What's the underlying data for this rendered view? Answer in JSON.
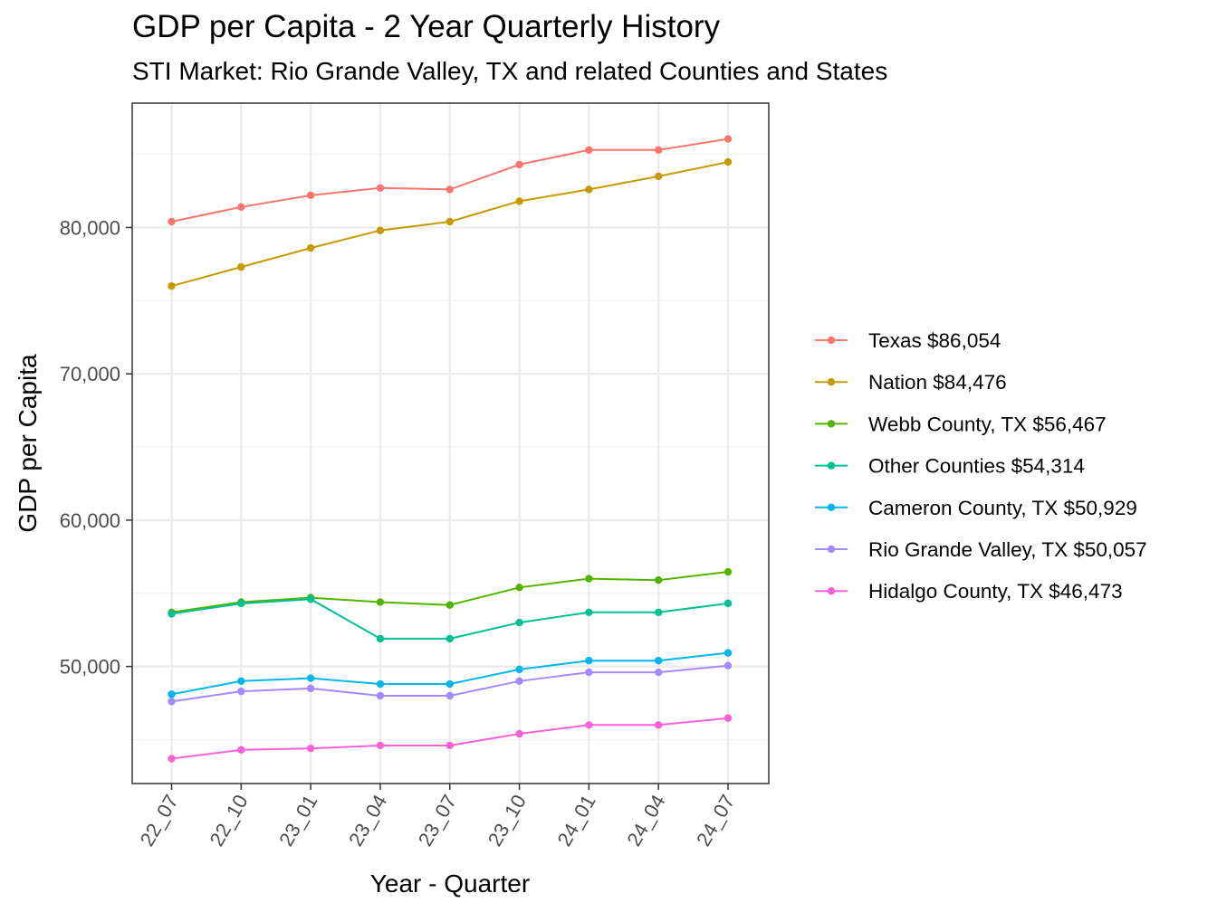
{
  "chart_data": {
    "type": "line",
    "title": "GDP per Capita - 2 Year Quarterly History",
    "subtitle": "STI Market: Rio Grande Valley, TX and related Counties and States",
    "xlabel": "Year - Quarter",
    "ylabel": "GDP per Capita",
    "ylim": [
      42000,
      88500
    ],
    "yticks": [
      50000,
      60000,
      70000,
      80000
    ],
    "ytick_labels": [
      "50,000",
      "60,000",
      "70,000",
      "80,000"
    ],
    "categories": [
      "22_07",
      "22_10",
      "23_01",
      "23_04",
      "23_07",
      "23_10",
      "24_01",
      "24_04",
      "24_07"
    ],
    "grid": true,
    "legend_position": "right",
    "series": [
      {
        "name": "Texas $86,054",
        "color": "#F8766D",
        "values": [
          80400,
          81400,
          82200,
          82700,
          82600,
          84300,
          85300,
          85300,
          86054
        ]
      },
      {
        "name": "Nation $84,476",
        "color": "#C49A00",
        "values": [
          76000,
          77300,
          78600,
          79800,
          80400,
          81800,
          82600,
          83500,
          84476
        ]
      },
      {
        "name": "Webb County, TX $56,467",
        "color": "#53B400",
        "values": [
          53700,
          54400,
          54700,
          54400,
          54200,
          55400,
          56000,
          55900,
          56467
        ]
      },
      {
        "name": "Other Counties $54,314",
        "color": "#00C094",
        "values": [
          53600,
          54300,
          54600,
          51900,
          51900,
          53000,
          53700,
          53700,
          54314
        ]
      },
      {
        "name": "Cameron County, TX $50,929",
        "color": "#00B6EB",
        "values": [
          48100,
          49000,
          49200,
          48800,
          48800,
          49800,
          50400,
          50400,
          50929
        ]
      },
      {
        "name": "Rio Grande Valley, TX $50,057",
        "color": "#A58AFF",
        "values": [
          47600,
          48300,
          48500,
          48000,
          48000,
          49000,
          49600,
          49600,
          50057
        ]
      },
      {
        "name": "Hidalgo County, TX $46,473",
        "color": "#FB61D7",
        "values": [
          43700,
          44300,
          44400,
          44600,
          44600,
          45400,
          46000,
          46000,
          46473
        ]
      }
    ]
  }
}
